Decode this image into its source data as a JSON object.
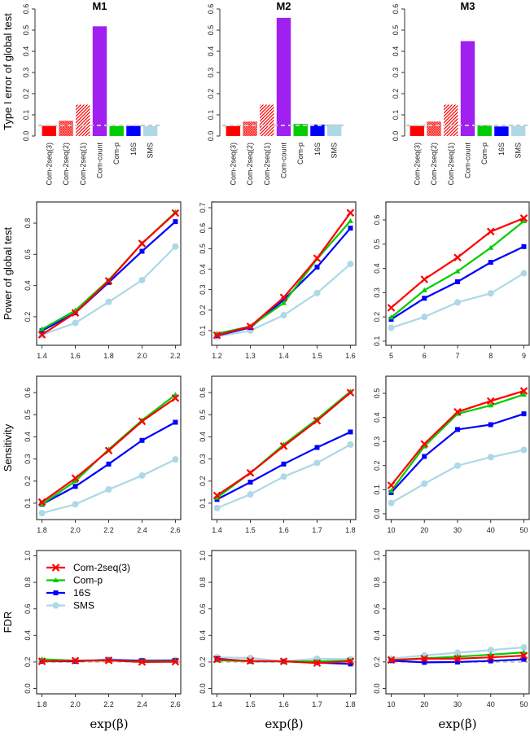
{
  "colors": {
    "Com-2seq(3)": "#ff0000",
    "Com-p": "#00cd00",
    "16S": "#0000ff",
    "SMS": "#add8e6",
    "Com-count": "#a020f0",
    "reference_line": "#c8c8c8"
  },
  "legend": {
    "placement": "top-left",
    "panel": "FDR M1",
    "entries": [
      "Com-2seq(3)",
      "Com-p",
      "16S",
      "SMS"
    ],
    "markers": [
      "cross",
      "triangle",
      "square",
      "circle"
    ]
  },
  "row_labels": [
    "Type I error of global test",
    "Power of global test",
    "Sensitivity",
    "FDR"
  ],
  "xlabel": "exp(β)",
  "chart_data": [
    {
      "type": "bar",
      "row": 0,
      "col": 0,
      "title": "M1",
      "ylabel": "Type I error of global test",
      "categories": [
        "Com-2seq(3)",
        "Com-2seq(2)",
        "Com-2seq(1)",
        "Com-count",
        "Com-p",
        "16S",
        "SMS"
      ],
      "values": [
        0.048,
        0.072,
        0.148,
        0.518,
        0.047,
        0.048,
        0.046
      ],
      "ylim": [
        0,
        0.6
      ],
      "yticks": [
        0.0,
        0.1,
        0.2,
        0.3,
        0.4,
        0.5,
        0.6
      ],
      "reference_line": 0.05,
      "fills": [
        "solid",
        "crosshatch",
        "diagonal",
        "solid",
        "solid",
        "solid",
        "solid"
      ]
    },
    {
      "type": "bar",
      "row": 0,
      "col": 1,
      "title": "M2",
      "categories": [
        "Com-2seq(3)",
        "Com-2seq(2)",
        "Com-2seq(1)",
        "Com-count",
        "Com-p",
        "16S",
        "SMS"
      ],
      "values": [
        0.047,
        0.068,
        0.148,
        0.558,
        0.057,
        0.054,
        0.055
      ],
      "ylim": [
        0,
        0.6
      ],
      "yticks": [
        0.0,
        0.1,
        0.2,
        0.3,
        0.4,
        0.5,
        0.6
      ],
      "reference_line": 0.05,
      "fills": [
        "solid",
        "crosshatch",
        "diagonal",
        "solid",
        "solid",
        "solid",
        "solid"
      ]
    },
    {
      "type": "bar",
      "row": 0,
      "col": 2,
      "title": "M3",
      "categories": [
        "Com-2seq(3)",
        "Com-2seq(2)",
        "Com-2seq(1)",
        "Com-count",
        "Com-p",
        "16S",
        "SMS"
      ],
      "values": [
        0.048,
        0.068,
        0.148,
        0.448,
        0.05,
        0.045,
        0.048
      ],
      "ylim": [
        0,
        0.6
      ],
      "yticks": [
        0.0,
        0.1,
        0.2,
        0.3,
        0.4,
        0.5,
        0.6
      ],
      "reference_line": 0.05,
      "fills": [
        "solid",
        "crosshatch",
        "diagonal",
        "solid",
        "solid",
        "solid",
        "solid"
      ]
    },
    {
      "type": "line",
      "row": 1,
      "col": 0,
      "ylabel": "Power of global test",
      "x": [
        1.4,
        1.6,
        1.8,
        2.0,
        2.2
      ],
      "xticks": [
        "1.4",
        "1.6",
        "1.8",
        "2.0",
        "2.2"
      ],
      "ylim": [
        0.017,
        0.936
      ],
      "yticks": [
        0.2,
        0.4,
        0.6,
        0.8
      ],
      "series": [
        {
          "name": "SMS",
          "values": [
            0.085,
            0.16,
            0.295,
            0.435,
            0.65
          ]
        },
        {
          "name": "16S",
          "values": [
            0.11,
            0.225,
            0.42,
            0.62,
            0.81
          ]
        },
        {
          "name": "Com-p",
          "values": [
            0.12,
            0.24,
            0.435,
            0.67,
            0.87
          ]
        },
        {
          "name": "Com-2seq(3)",
          "values": [
            0.085,
            0.225,
            0.43,
            0.67,
            0.865
          ]
        }
      ]
    },
    {
      "type": "line",
      "row": 1,
      "col": 1,
      "x": [
        1.2,
        1.3,
        1.4,
        1.5,
        1.6
      ],
      "xticks": [
        "1.2",
        "1.3",
        "1.4",
        "1.5",
        "1.6"
      ],
      "ylim": [
        0.028,
        0.728
      ],
      "yticks": [
        0.1,
        0.2,
        0.3,
        0.4,
        0.5,
        0.6,
        0.7
      ],
      "series": [
        {
          "name": "SMS",
          "values": [
            0.07,
            0.1,
            0.175,
            0.283,
            0.425
          ]
        },
        {
          "name": "16S",
          "values": [
            0.075,
            0.115,
            0.25,
            0.41,
            0.6
          ]
        },
        {
          "name": "Com-p",
          "values": [
            0.085,
            0.12,
            0.235,
            0.45,
            0.635
          ]
        },
        {
          "name": "Com-2seq(3)",
          "values": [
            0.077,
            0.12,
            0.262,
            0.453,
            0.675
          ]
        }
      ]
    },
    {
      "type": "line",
      "row": 1,
      "col": 2,
      "x": [
        5,
        6,
        7,
        8,
        9
      ],
      "xticks": [
        "5",
        "6",
        "7",
        "8",
        "9"
      ],
      "ylim": [
        0.083,
        0.674
      ],
      "yticks": [
        0.1,
        0.2,
        0.3,
        0.4,
        0.5,
        0.6
      ],
      "series": [
        {
          "name": "SMS",
          "values": [
            0.155,
            0.2,
            0.26,
            0.297,
            0.38
          ]
        },
        {
          "name": "16S",
          "values": [
            0.19,
            0.277,
            0.345,
            0.425,
            0.49
          ]
        },
        {
          "name": "Com-p",
          "values": [
            0.198,
            0.31,
            0.388,
            0.485,
            0.595
          ]
        },
        {
          "name": "Com-2seq(3)",
          "values": [
            0.238,
            0.355,
            0.445,
            0.552,
            0.607
          ]
        }
      ]
    },
    {
      "type": "line",
      "row": 2,
      "col": 0,
      "ylabel": "Sensitivity",
      "x": [
        1.8,
        2.0,
        2.2,
        2.4,
        2.6
      ],
      "xticks": [
        "1.8",
        "2.0",
        "2.2",
        "2.4",
        "2.6"
      ],
      "ylim": [
        0.026,
        0.674
      ],
      "yticks": [
        0.1,
        0.2,
        0.3,
        0.4,
        0.5,
        0.6
      ],
      "series": [
        {
          "name": "SMS",
          "values": [
            0.055,
            0.095,
            0.162,
            0.225,
            0.298
          ]
        },
        {
          "name": "16S",
          "values": [
            0.095,
            0.176,
            0.277,
            0.384,
            0.466
          ]
        },
        {
          "name": "Com-p",
          "values": [
            0.095,
            0.2,
            0.343,
            0.475,
            0.59
          ]
        },
        {
          "name": "Com-2seq(3)",
          "values": [
            0.105,
            0.213,
            0.338,
            0.47,
            0.575
          ]
        }
      ]
    },
    {
      "type": "line",
      "row": 2,
      "col": 1,
      "x": [
        1.4,
        1.5,
        1.6,
        1.7,
        1.8
      ],
      "xticks": [
        "1.4",
        "1.5",
        "1.6",
        "1.7",
        "1.8"
      ],
      "ylim": [
        0.026,
        0.674
      ],
      "yticks": [
        0.1,
        0.2,
        0.3,
        0.4,
        0.5,
        0.6
      ],
      "series": [
        {
          "name": "SMS",
          "values": [
            0.078,
            0.14,
            0.22,
            0.282,
            0.365
          ]
        },
        {
          "name": "16S",
          "values": [
            0.117,
            0.195,
            0.277,
            0.352,
            0.422
          ]
        },
        {
          "name": "Com-p",
          "values": [
            0.125,
            0.237,
            0.365,
            0.48,
            0.605
          ]
        },
        {
          "name": "Com-2seq(3)",
          "values": [
            0.135,
            0.237,
            0.358,
            0.473,
            0.6
          ]
        }
      ]
    },
    {
      "type": "line",
      "row": 2,
      "col": 2,
      "x": [
        10,
        20,
        30,
        40,
        50
      ],
      "xticks": [
        "10",
        "20",
        "30",
        "40",
        "50"
      ],
      "ylim": [
        -0.024,
        0.571
      ],
      "yticks": [
        0.0,
        0.1,
        0.2,
        0.3,
        0.4,
        0.5
      ],
      "series": [
        {
          "name": "SMS",
          "values": [
            0.045,
            0.125,
            0.2,
            0.235,
            0.265
          ]
        },
        {
          "name": "16S",
          "values": [
            0.088,
            0.238,
            0.35,
            0.37,
            0.415
          ]
        },
        {
          "name": "Com-p",
          "values": [
            0.095,
            0.28,
            0.415,
            0.45,
            0.495
          ]
        },
        {
          "name": "Com-2seq(3)",
          "values": [
            0.118,
            0.29,
            0.423,
            0.468,
            0.51
          ]
        }
      ]
    },
    {
      "type": "line",
      "row": 3,
      "col": 0,
      "ylabel": "FDR",
      "xlabel": "exp(β)",
      "x": [
        1.8,
        2.0,
        2.2,
        2.4,
        2.6
      ],
      "xticks": [
        "1.8",
        "2.0",
        "2.2",
        "2.4",
        "2.6"
      ],
      "ylim": [
        -0.04,
        1.04
      ],
      "yticks": [
        0.0,
        0.2,
        0.4,
        0.6,
        0.8,
        1.0
      ],
      "reference_line": 0.2,
      "series": [
        {
          "name": "SMS",
          "values": [
            0.21,
            0.21,
            0.22,
            0.21,
            0.215
          ]
        },
        {
          "name": "16S",
          "values": [
            0.205,
            0.205,
            0.215,
            0.21,
            0.21
          ]
        },
        {
          "name": "Com-p",
          "values": [
            0.22,
            0.21,
            0.21,
            0.205,
            0.205
          ]
        },
        {
          "name": "Com-2seq(3)",
          "values": [
            0.205,
            0.21,
            0.212,
            0.2,
            0.202
          ]
        }
      ]
    },
    {
      "type": "line",
      "row": 3,
      "col": 1,
      "xlabel": "exp(β)",
      "x": [
        1.4,
        1.5,
        1.6,
        1.7,
        1.8
      ],
      "xticks": [
        "1.4",
        "1.5",
        "1.6",
        "1.7",
        "1.8"
      ],
      "ylim": [
        -0.04,
        1.04
      ],
      "yticks": [
        0.0,
        0.2,
        0.4,
        0.6,
        0.8,
        1.0
      ],
      "reference_line": 0.2,
      "series": [
        {
          "name": "SMS",
          "values": [
            0.235,
            0.23,
            0.205,
            0.225,
            0.22
          ]
        },
        {
          "name": "16S",
          "values": [
            0.225,
            0.205,
            0.205,
            0.195,
            0.185
          ]
        },
        {
          "name": "Com-p",
          "values": [
            0.212,
            0.205,
            0.205,
            0.205,
            0.21
          ]
        },
        {
          "name": "Com-2seq(3)",
          "values": [
            0.22,
            0.208,
            0.205,
            0.192,
            0.205
          ]
        }
      ]
    },
    {
      "type": "line",
      "row": 3,
      "col": 2,
      "xlabel": "exp(β)",
      "x": [
        10,
        20,
        30,
        40,
        50
      ],
      "xticks": [
        "10",
        "20",
        "30",
        "40",
        "50"
      ],
      "ylim": [
        -0.04,
        1.04
      ],
      "yticks": [
        0.0,
        0.2,
        0.4,
        0.6,
        0.8,
        1.0
      ],
      "reference_line": 0.2,
      "series": [
        {
          "name": "SMS",
          "values": [
            0.225,
            0.25,
            0.27,
            0.29,
            0.31
          ]
        },
        {
          "name": "16S",
          "values": [
            0.21,
            0.197,
            0.2,
            0.208,
            0.22
          ]
        },
        {
          "name": "Com-p",
          "values": [
            0.215,
            0.228,
            0.24,
            0.255,
            0.272
          ]
        },
        {
          "name": "Com-2seq(3)",
          "values": [
            0.215,
            0.225,
            0.225,
            0.235,
            0.248
          ]
        }
      ]
    }
  ]
}
